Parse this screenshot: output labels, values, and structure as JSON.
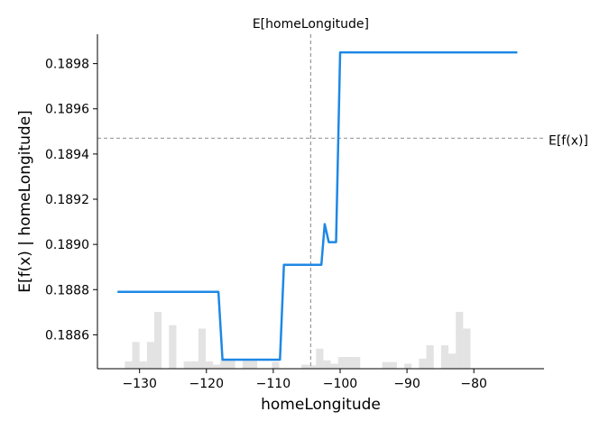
{
  "chart_data": {
    "type": "line",
    "top_label": "E[homeLongitude]",
    "xlabel": "homeLongitude",
    "ylabel": "E[f(x) | homeLongitude]",
    "hline_label": "E[f(x)]",
    "xlim": [
      -136.3,
      -69.5
    ],
    "ylim": [
      0.18845,
      0.18993
    ],
    "x_ticks": [
      -130,
      -120,
      -110,
      -100,
      -90,
      -80
    ],
    "x_tick_labels": [
      "−130",
      "−120",
      "−110",
      "−100",
      "−90",
      "−80"
    ],
    "y_ticks": [
      0.1886,
      0.1888,
      0.189,
      0.1892,
      0.1894,
      0.1896,
      0.1898
    ],
    "y_tick_labels": [
      "0.1886",
      "0.1888",
      "0.1890",
      "0.1892",
      "0.1894",
      "0.1896",
      "0.1898"
    ],
    "expected_x": -104.4,
    "expected_fx": 0.18947,
    "line_color": "#1e88e5",
    "series": [
      {
        "x": [
          -133.3,
          -118.2,
          -117.6,
          -109.0,
          -108.4,
          -102.8,
          -102.3,
          -101.7,
          -100.6,
          -100.0,
          -73.5
        ],
        "y": [
          0.18879,
          0.18879,
          0.18849,
          0.18849,
          0.18891,
          0.18891,
          0.18909,
          0.18901,
          0.18901,
          0.18985,
          0.18985
        ]
      }
    ],
    "histogram": {
      "color": "#cccccc",
      "bins": [
        {
          "x0": -132.2,
          "x1": -131.1,
          "h": 0.022
        },
        {
          "x0": -131.1,
          "x1": -130.0,
          "h": 0.08
        },
        {
          "x0": -130.0,
          "x1": -128.9,
          "h": 0.022
        },
        {
          "x0": -128.9,
          "x1": -127.8,
          "h": 0.08
        },
        {
          "x0": -127.8,
          "x1": -126.7,
          "h": 0.17
        },
        {
          "x0": -125.6,
          "x1": -124.5,
          "h": 0.13
        },
        {
          "x0": -123.4,
          "x1": -122.3,
          "h": 0.022
        },
        {
          "x0": -122.3,
          "x1": -121.2,
          "h": 0.022
        },
        {
          "x0": -121.2,
          "x1": -120.1,
          "h": 0.12
        },
        {
          "x0": -120.1,
          "x1": -119.0,
          "h": 0.022
        },
        {
          "x0": -119.0,
          "x1": -117.9,
          "h": 0.012
        },
        {
          "x0": -117.9,
          "x1": -116.8,
          "h": 0.025
        },
        {
          "x0": -116.8,
          "x1": -115.7,
          "h": 0.03
        },
        {
          "x0": -114.6,
          "x1": -113.5,
          "h": 0.025
        },
        {
          "x0": -113.5,
          "x1": -112.4,
          "h": 0.025
        },
        {
          "x0": -110.2,
          "x1": -109.1,
          "h": 0.02
        },
        {
          "x0": -105.8,
          "x1": -104.7,
          "h": 0.012
        },
        {
          "x0": -104.7,
          "x1": -103.6,
          "h": 0.01
        },
        {
          "x0": -103.6,
          "x1": -102.5,
          "h": 0.06
        },
        {
          "x0": -102.5,
          "x1": -101.4,
          "h": 0.025
        },
        {
          "x0": -101.4,
          "x1": -100.3,
          "h": 0.015
        },
        {
          "x0": -100.3,
          "x1": -97.0,
          "h": 0.035
        },
        {
          "x0": -93.7,
          "x1": -92.6,
          "h": 0.02
        },
        {
          "x0": -92.6,
          "x1": -91.5,
          "h": 0.02
        },
        {
          "x0": -90.4,
          "x1": -89.3,
          "h": 0.015
        },
        {
          "x0": -88.2,
          "x1": -87.1,
          "h": 0.03
        },
        {
          "x0": -87.1,
          "x1": -86.0,
          "h": 0.07
        },
        {
          "x0": -84.9,
          "x1": -83.8,
          "h": 0.07
        },
        {
          "x0": -83.8,
          "x1": -82.7,
          "h": 0.045
        },
        {
          "x0": -82.7,
          "x1": -81.6,
          "h": 0.17
        },
        {
          "x0": -81.6,
          "x1": -80.5,
          "h": 0.12
        }
      ]
    }
  }
}
